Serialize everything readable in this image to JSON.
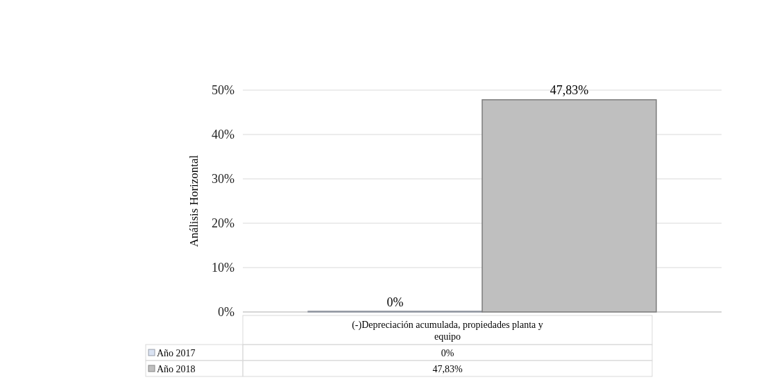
{
  "chart_data": {
    "type": "bar",
    "ylabel": "Análisis Horizontal",
    "categories": [
      "(-)Depreciación acumulada, propiedades planta y equipo"
    ],
    "series": [
      {
        "name": "Año 2017",
        "color": "#dae3f3",
        "values": [
          0
        ],
        "value_labels": [
          "0%"
        ]
      },
      {
        "name": "Año 2018",
        "color": "#bfbfbf",
        "values": [
          47.83
        ],
        "value_labels": [
          "47,83%"
        ]
      }
    ],
    "ylim": [
      0,
      50
    ],
    "yticks": [
      {
        "value": 0,
        "label": "0%"
      },
      {
        "value": 10,
        "label": "10%"
      },
      {
        "value": 20,
        "label": "20%"
      },
      {
        "value": 30,
        "label": "30%"
      },
      {
        "value": 40,
        "label": "40%"
      },
      {
        "value": 50,
        "label": "50%"
      }
    ],
    "grid": true,
    "legend": "bottom"
  }
}
